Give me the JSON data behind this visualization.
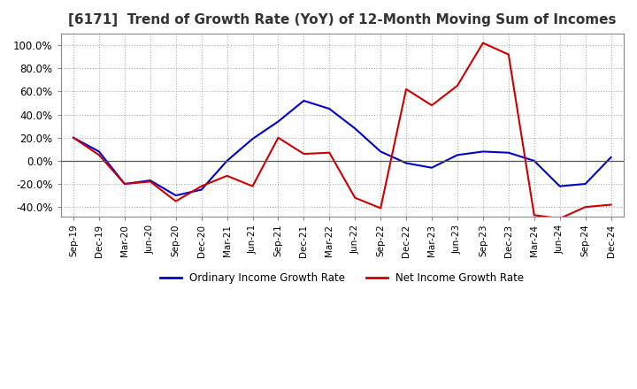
{
  "title": "[6171]  Trend of Growth Rate (YoY) of 12-Month Moving Sum of Incomes",
  "title_fontsize": 11,
  "ylim": [
    -0.48,
    1.1
  ],
  "yticks": [
    -0.4,
    -0.2,
    0.0,
    0.2,
    0.4,
    0.6,
    0.8,
    1.0
  ],
  "background_color": "#ffffff",
  "grid_color": "#aaaaaa",
  "ordinary_color": "#0000cc",
  "net_color": "#cc0000",
  "dates": [
    "Sep-19",
    "Dec-19",
    "Mar-20",
    "Jun-20",
    "Sep-20",
    "Dec-20",
    "Mar-21",
    "Jun-21",
    "Sep-21",
    "Dec-21",
    "Mar-22",
    "Jun-22",
    "Sep-22",
    "Dec-22",
    "Mar-23",
    "Jun-23",
    "Sep-23",
    "Dec-23",
    "Mar-24",
    "Jun-24",
    "Sep-24",
    "Dec-24"
  ],
  "ordinary_income": [
    0.2,
    0.08,
    -0.2,
    -0.17,
    -0.3,
    -0.25,
    0.0,
    0.19,
    0.34,
    0.52,
    0.45,
    0.28,
    0.08,
    -0.02,
    -0.06,
    0.05,
    0.08,
    0.07,
    0.0,
    -0.22,
    -0.2,
    0.03
  ],
  "net_income": [
    0.2,
    0.05,
    -0.2,
    -0.18,
    -0.35,
    -0.22,
    -0.13,
    -0.22,
    0.2,
    0.06,
    0.07,
    -0.32,
    -0.41,
    0.62,
    0.48,
    0.65,
    1.02,
    0.92,
    -0.47,
    -0.5,
    -0.4,
    -0.38
  ],
  "legend_labels": [
    "Ordinary Income Growth Rate",
    "Net Income Growth Rate"
  ],
  "legend_colors": [
    "#0000cc",
    "#cc0000"
  ],
  "linewidth": 1.5
}
